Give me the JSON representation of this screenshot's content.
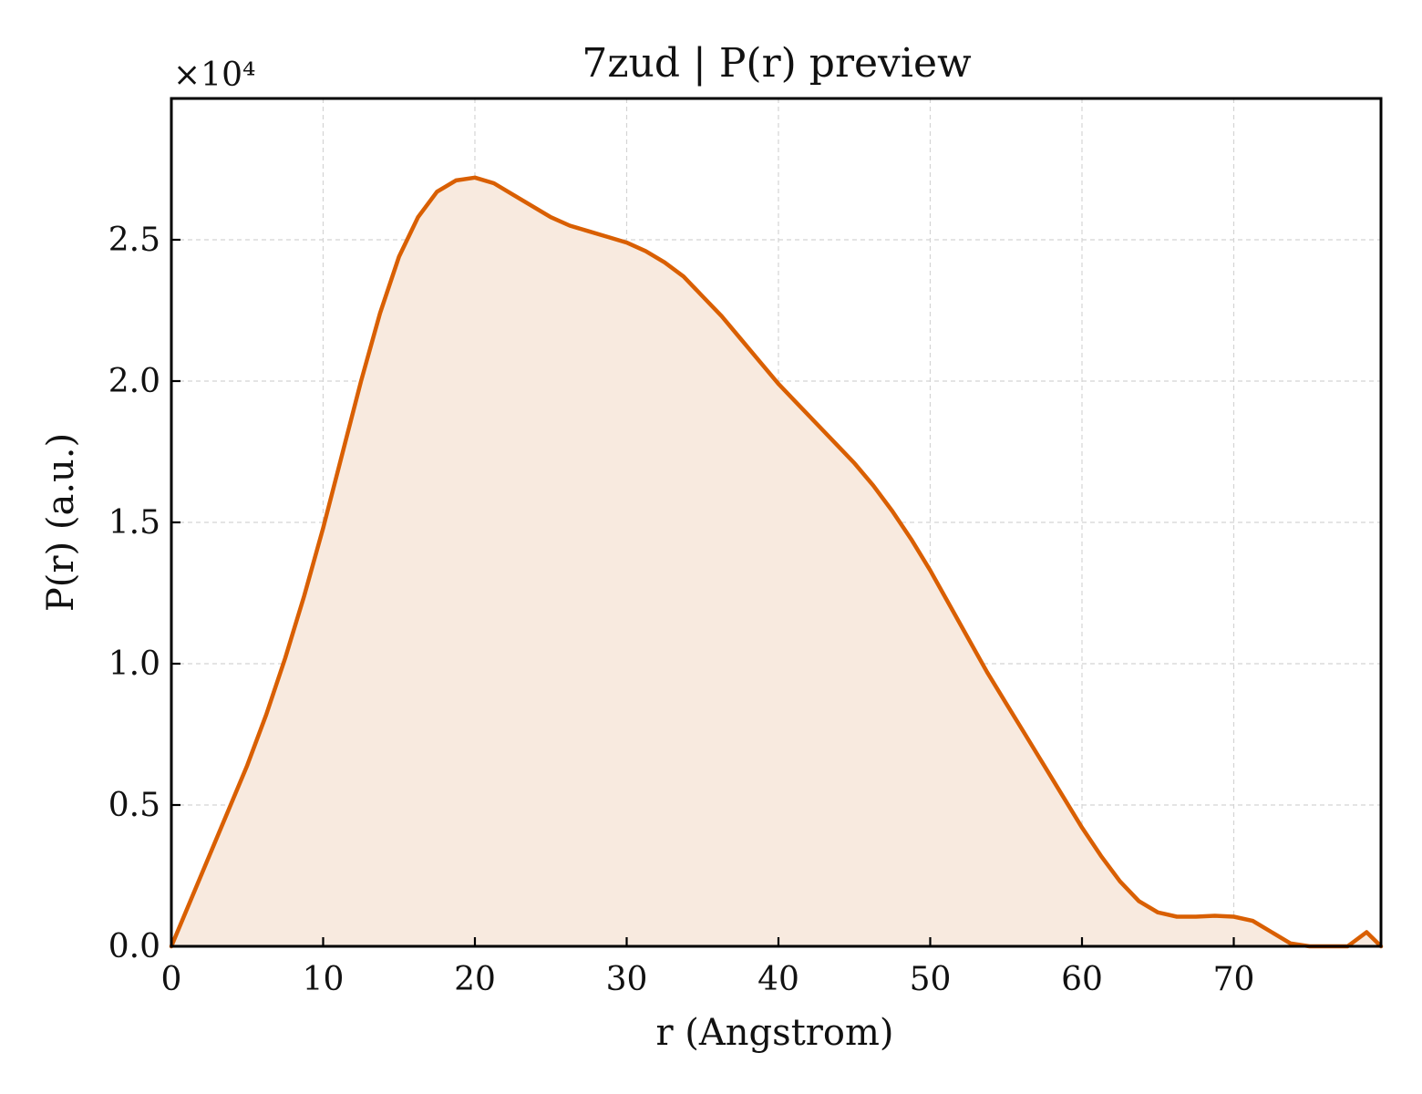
{
  "chart_data": {
    "type": "area",
    "title": "7zud | P(r) preview",
    "xlabel": "r (Angstrom)",
    "ylabel": "P(r) (a.u.)",
    "y_offset_label": "×10⁴",
    "xlim": [
      0,
      79.7
    ],
    "ylim": [
      0,
      3.0
    ],
    "x_ticks": [
      0,
      10,
      20,
      30,
      40,
      50,
      60,
      70
    ],
    "x_tick_labels": [
      "0",
      "10",
      "20",
      "30",
      "40",
      "50",
      "60",
      "70"
    ],
    "y_ticks": [
      0,
      0.5,
      1.0,
      1.5,
      2.0,
      2.5
    ],
    "y_tick_labels": [
      "0.0",
      "0.5",
      "1.0",
      "1.5",
      "2.0",
      "2.5"
    ],
    "grid": true,
    "line_color": "#d95f02",
    "fill_color": "#f8eadf",
    "series": [
      {
        "x": [
          0,
          1.25,
          2.5,
          3.75,
          5,
          6.25,
          7.5,
          8.75,
          10,
          11.25,
          12.5,
          13.75,
          15,
          16.25,
          17.5,
          18.75,
          20,
          21.25,
          22.5,
          23.75,
          25,
          26.25,
          27.5,
          28.75,
          30,
          31.25,
          32.5,
          33.75,
          35,
          36.25,
          37.5,
          38.75,
          40,
          41.25,
          42.5,
          43.75,
          45,
          46.25,
          47.5,
          48.75,
          50,
          51.25,
          52.5,
          53.75,
          55,
          56.25,
          57.5,
          58.75,
          60,
          61.25,
          62.5,
          63.75,
          65,
          66.25,
          67.5,
          68.75,
          70,
          71.25,
          72.5,
          73.75,
          75,
          76.25,
          77.5,
          78.75,
          79.7
        ],
        "values": [
          0.0,
          0.16,
          0.32,
          0.48,
          0.64,
          0.82,
          1.02,
          1.24,
          1.48,
          1.74,
          2.0,
          2.24,
          2.44,
          2.58,
          2.67,
          2.71,
          2.72,
          2.7,
          2.66,
          2.62,
          2.58,
          2.55,
          2.53,
          2.51,
          2.49,
          2.46,
          2.42,
          2.37,
          2.3,
          2.23,
          2.15,
          2.07,
          1.99,
          1.92,
          1.85,
          1.78,
          1.71,
          1.63,
          1.54,
          1.44,
          1.33,
          1.21,
          1.09,
          0.97,
          0.86,
          0.75,
          0.64,
          0.53,
          0.42,
          0.32,
          0.23,
          0.16,
          0.12,
          0.105,
          0.105,
          0.108,
          0.105,
          0.09,
          0.05,
          0.01,
          -0.02,
          -0.03,
          0.0,
          0.05,
          0.0
        ]
      }
    ]
  }
}
